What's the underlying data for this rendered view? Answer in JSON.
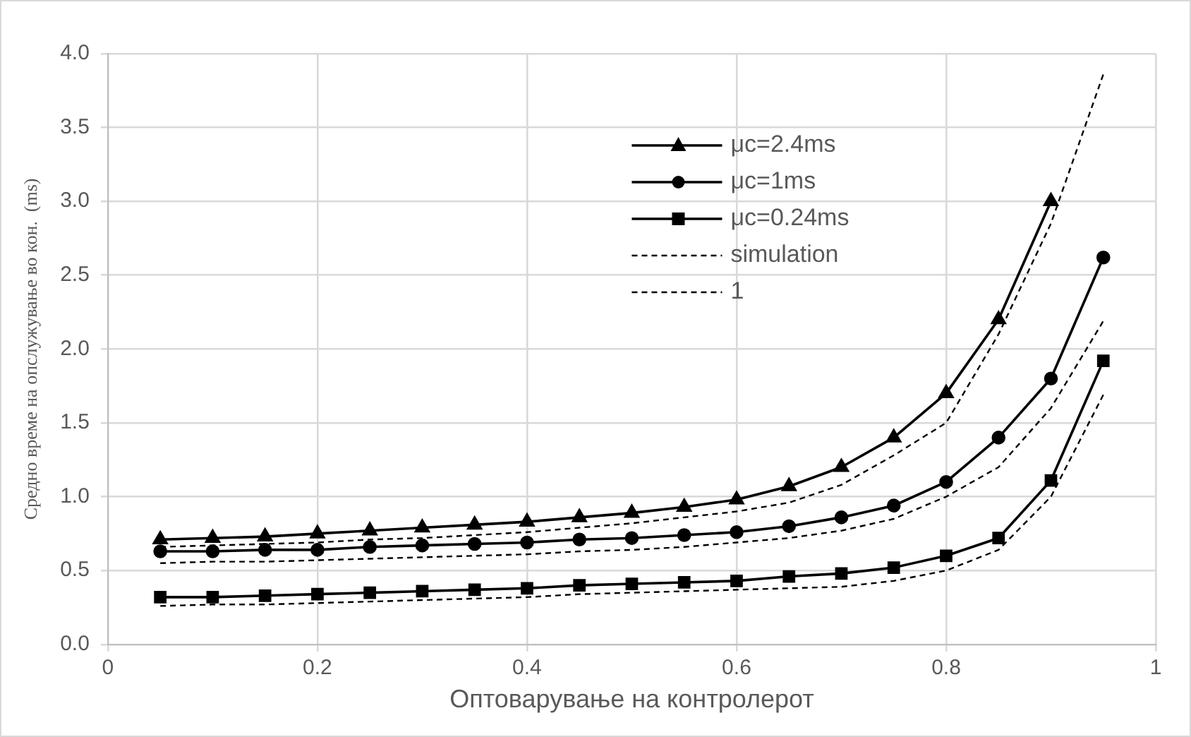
{
  "chart_data": {
    "type": "line",
    "xlabel": "Оптоварување на контролерот",
    "ylabel": "Средно време на опслужување во кон.  (ms)",
    "x": [
      0.05,
      0.1,
      0.15,
      0.2,
      0.25,
      0.3,
      0.35,
      0.4,
      0.45,
      0.5,
      0.55,
      0.6,
      0.65,
      0.7,
      0.75,
      0.8,
      0.85,
      0.9,
      0.95
    ],
    "xlim": [
      0,
      1
    ],
    "xticks": [
      0,
      0.2,
      0.4,
      0.6,
      0.8,
      1
    ],
    "ylim": [
      0,
      4
    ],
    "yticks": [
      {
        "value": 0,
        "label": "0.0"
      },
      {
        "value": 0.5,
        "label": "0.5"
      },
      {
        "value": 1,
        "label": "1.0"
      },
      {
        "value": 1.5,
        "label": "1.5"
      },
      {
        "value": 2,
        "label": "2.0"
      },
      {
        "value": 2.5,
        "label": "2.5"
      },
      {
        "value": 3,
        "label": "3.0"
      },
      {
        "value": 3.5,
        "label": "3.5"
      },
      {
        "value": 4,
        "label": "4.0"
      }
    ],
    "grid": true,
    "legend": "top right",
    "series": [
      {
        "name": "μc=2.4ms",
        "color": "#000000",
        "marker": "triangle",
        "line_style": "solid",
        "values": [
          0.71,
          0.72,
          0.73,
          0.75,
          0.77,
          0.79,
          0.81,
          0.83,
          0.86,
          0.89,
          0.93,
          0.98,
          1.07,
          1.2,
          1.4,
          1.7,
          2.2,
          3.0,
          null
        ]
      },
      {
        "name": "μc=1ms",
        "color": "#000000",
        "marker": "circle",
        "line_style": "solid",
        "values": [
          0.63,
          0.63,
          0.64,
          0.64,
          0.66,
          0.67,
          0.68,
          0.69,
          0.71,
          0.72,
          0.74,
          0.76,
          0.8,
          0.86,
          0.94,
          1.1,
          1.4,
          1.8,
          2.62
        ]
      },
      {
        "name": "μc=0.24ms",
        "color": "#000000",
        "marker": "square",
        "line_style": "solid",
        "values": [
          0.32,
          0.32,
          0.33,
          0.34,
          0.35,
          0.36,
          0.37,
          0.38,
          0.4,
          0.41,
          0.42,
          0.43,
          0.46,
          0.48,
          0.52,
          0.6,
          0.72,
          1.11,
          1.92
        ]
      },
      {
        "name": "simulation",
        "color": "#000000",
        "marker": "none",
        "line_style": "dashed",
        "values": [
          0.66,
          0.67,
          0.68,
          0.69,
          0.71,
          0.72,
          0.74,
          0.76,
          0.79,
          0.82,
          0.86,
          0.9,
          0.96,
          1.08,
          1.28,
          1.5,
          2.1,
          2.85,
          3.86
        ]
      },
      {
        "name": "1",
        "color": "#000000",
        "marker": "none",
        "line_style": "dashed",
        "values": [
          0.55,
          0.56,
          0.56,
          0.57,
          0.58,
          0.59,
          0.6,
          0.61,
          0.63,
          0.64,
          0.66,
          0.69,
          0.72,
          0.77,
          0.85,
          1.0,
          1.2,
          1.6,
          2.19
        ]
      },
      {
        "color": "#000000",
        "marker": "none",
        "line_style": "dashed",
        "values": [
          0.26,
          0.27,
          0.27,
          0.28,
          0.29,
          0.3,
          0.31,
          0.32,
          0.34,
          0.35,
          0.36,
          0.37,
          0.38,
          0.39,
          0.43,
          0.5,
          0.64,
          1.0,
          1.69
        ]
      }
    ]
  }
}
